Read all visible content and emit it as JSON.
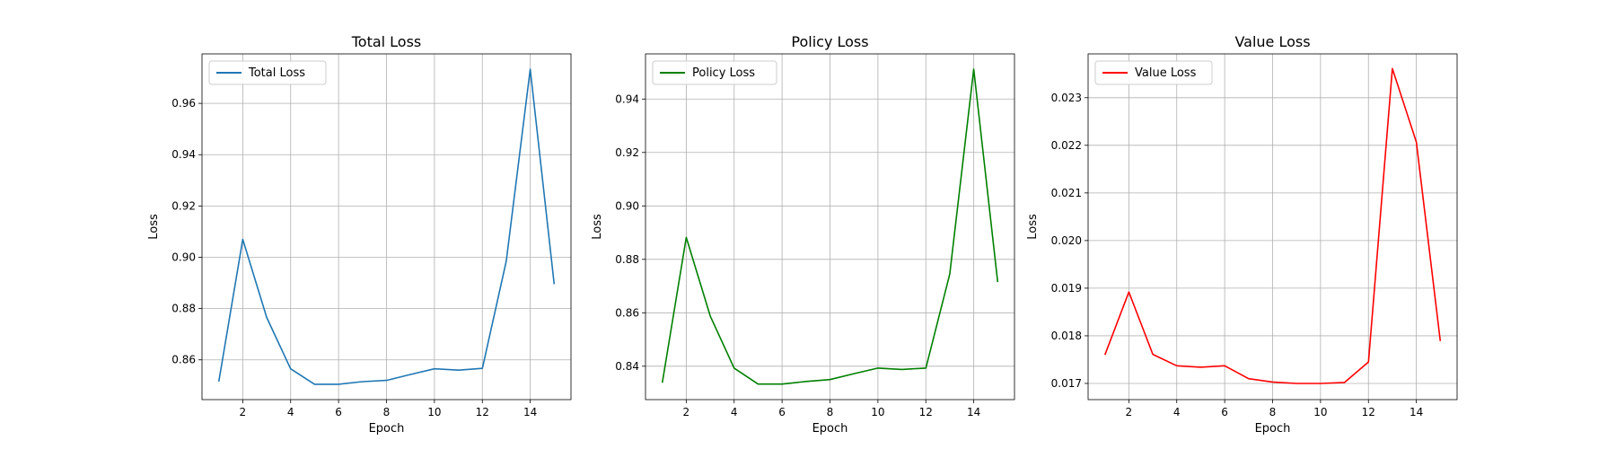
{
  "chart_data": [
    {
      "type": "line",
      "title": "Total Loss",
      "xlabel": "Epoch",
      "ylabel": "Loss",
      "xlim": [
        0.3,
        15.7
      ],
      "ylim": [
        0.8445,
        0.9793
      ],
      "xticks": [
        2,
        4,
        6,
        8,
        10,
        12,
        14
      ],
      "yticks": [
        0.86,
        0.88,
        0.9,
        0.92,
        0.94,
        0.96
      ],
      "ytick_labels": [
        "0.86",
        "0.88",
        "0.90",
        "0.92",
        "0.94",
        "0.96"
      ],
      "grid": true,
      "legend_position": "upper-left",
      "series": [
        {
          "name": "Total Loss",
          "color": "#1f77b4",
          "x": [
            1,
            2,
            3,
            4,
            5,
            6,
            7,
            8,
            9,
            10,
            11,
            12,
            13,
            14,
            15
          ],
          "y": [
            0.8515,
            0.907,
            0.8765,
            0.8565,
            0.8505,
            0.8505,
            0.8515,
            0.852,
            0.8543,
            0.8565,
            0.856,
            0.8567,
            0.8985,
            0.9733,
            0.8895
          ]
        }
      ]
    },
    {
      "type": "line",
      "title": "Policy Loss",
      "xlabel": "Epoch",
      "ylabel": "Loss",
      "xlim": [
        0.3,
        15.7
      ],
      "ylim": [
        0.8275,
        0.9569
      ],
      "xticks": [
        2,
        4,
        6,
        8,
        10,
        12,
        14
      ],
      "yticks": [
        0.84,
        0.86,
        0.88,
        0.9,
        0.92,
        0.94
      ],
      "ytick_labels": [
        "0.84",
        "0.86",
        "0.88",
        "0.90",
        "0.92",
        "0.94"
      ],
      "grid": true,
      "legend_position": "upper-left",
      "series": [
        {
          "name": "Policy Loss",
          "color": "#008000",
          "x": [
            1,
            2,
            3,
            4,
            5,
            6,
            7,
            8,
            9,
            10,
            11,
            12,
            13,
            14,
            15
          ],
          "y": [
            0.8338,
            0.8882,
            0.8588,
            0.8393,
            0.8333,
            0.8333,
            0.8343,
            0.835,
            0.8372,
            0.8393,
            0.8388,
            0.8393,
            0.8745,
            0.9512,
            0.8715
          ]
        }
      ]
    },
    {
      "type": "line",
      "title": "Value Loss",
      "xlabel": "Epoch",
      "ylabel": "Loss",
      "xlim": [
        0.3,
        15.7
      ],
      "ylim": [
        0.01666,
        0.02392
      ],
      "xticks": [
        2,
        4,
        6,
        8,
        10,
        12,
        14
      ],
      "yticks": [
        0.017,
        0.018,
        0.019,
        0.02,
        0.021,
        0.022,
        0.023
      ],
      "ytick_labels": [
        "0.017",
        "0.018",
        "0.019",
        "0.020",
        "0.021",
        "0.022",
        "0.023"
      ],
      "grid": true,
      "legend_position": "upper-left",
      "series": [
        {
          "name": "Value Loss",
          "color": "#ff0000",
          "x": [
            1,
            2,
            3,
            4,
            5,
            6,
            7,
            8,
            9,
            10,
            11,
            12,
            13,
            14,
            15
          ],
          "y": [
            0.0176,
            0.01892,
            0.01761,
            0.01737,
            0.01734,
            0.01737,
            0.0171,
            0.01703,
            0.017,
            0.017,
            0.01702,
            0.01745,
            0.02361,
            0.02207,
            0.01789
          ]
        }
      ]
    }
  ]
}
